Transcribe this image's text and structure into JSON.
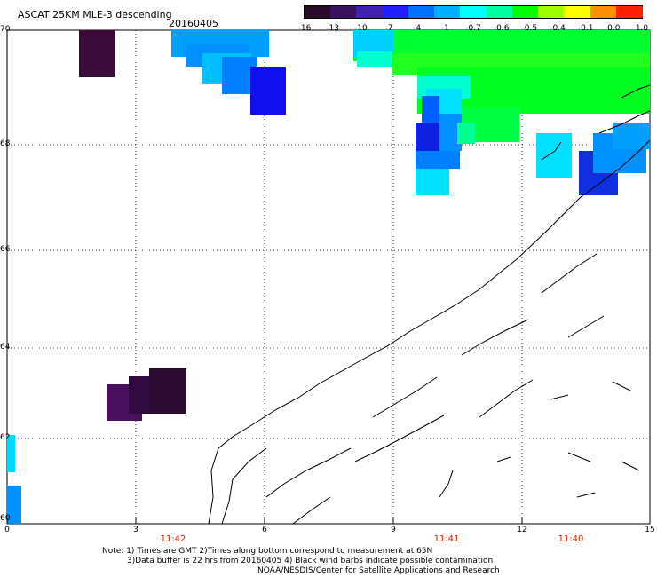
{
  "header": {
    "title": "ASCAT 25KM MLE-3 descending",
    "date": "20160405"
  },
  "colorbar": {
    "labels": [
      "-16",
      "-13",
      "-10",
      "-7",
      "-4",
      "-1",
      "-0.7",
      "-0.6",
      "-0.5",
      "-0.4",
      "-0.1",
      "0.0",
      "1.0"
    ],
    "colors": [
      "#2a0a2a",
      "#3a1060",
      "#4020b0",
      "#2020ff",
      "#0070ff",
      "#00b0ff",
      "#00ffff",
      "#00ffa0",
      "#00ff00",
      "#a0ff00",
      "#ffff00",
      "#ff9000",
      "#ff2000"
    ]
  },
  "axes": {
    "lat_labels": [
      "70",
      "68",
      "66",
      "64",
      "62",
      "60"
    ],
    "lon_labels": [
      "0",
      "3",
      "6",
      "9",
      "12",
      "15"
    ],
    "time_labels": [
      "11:42",
      "11:41",
      "11:40"
    ]
  },
  "notes": {
    "line1": "Note: 1) Times are GMT 2)Times along bottom correspond to measurement at 65N",
    "line2": "3)Data buffer is 22 hrs from 20160405 4) Black wind barbs indicate possible contamination",
    "line3": "NOAA/NESDIS/Center for Satellite Applications and Research"
  }
}
